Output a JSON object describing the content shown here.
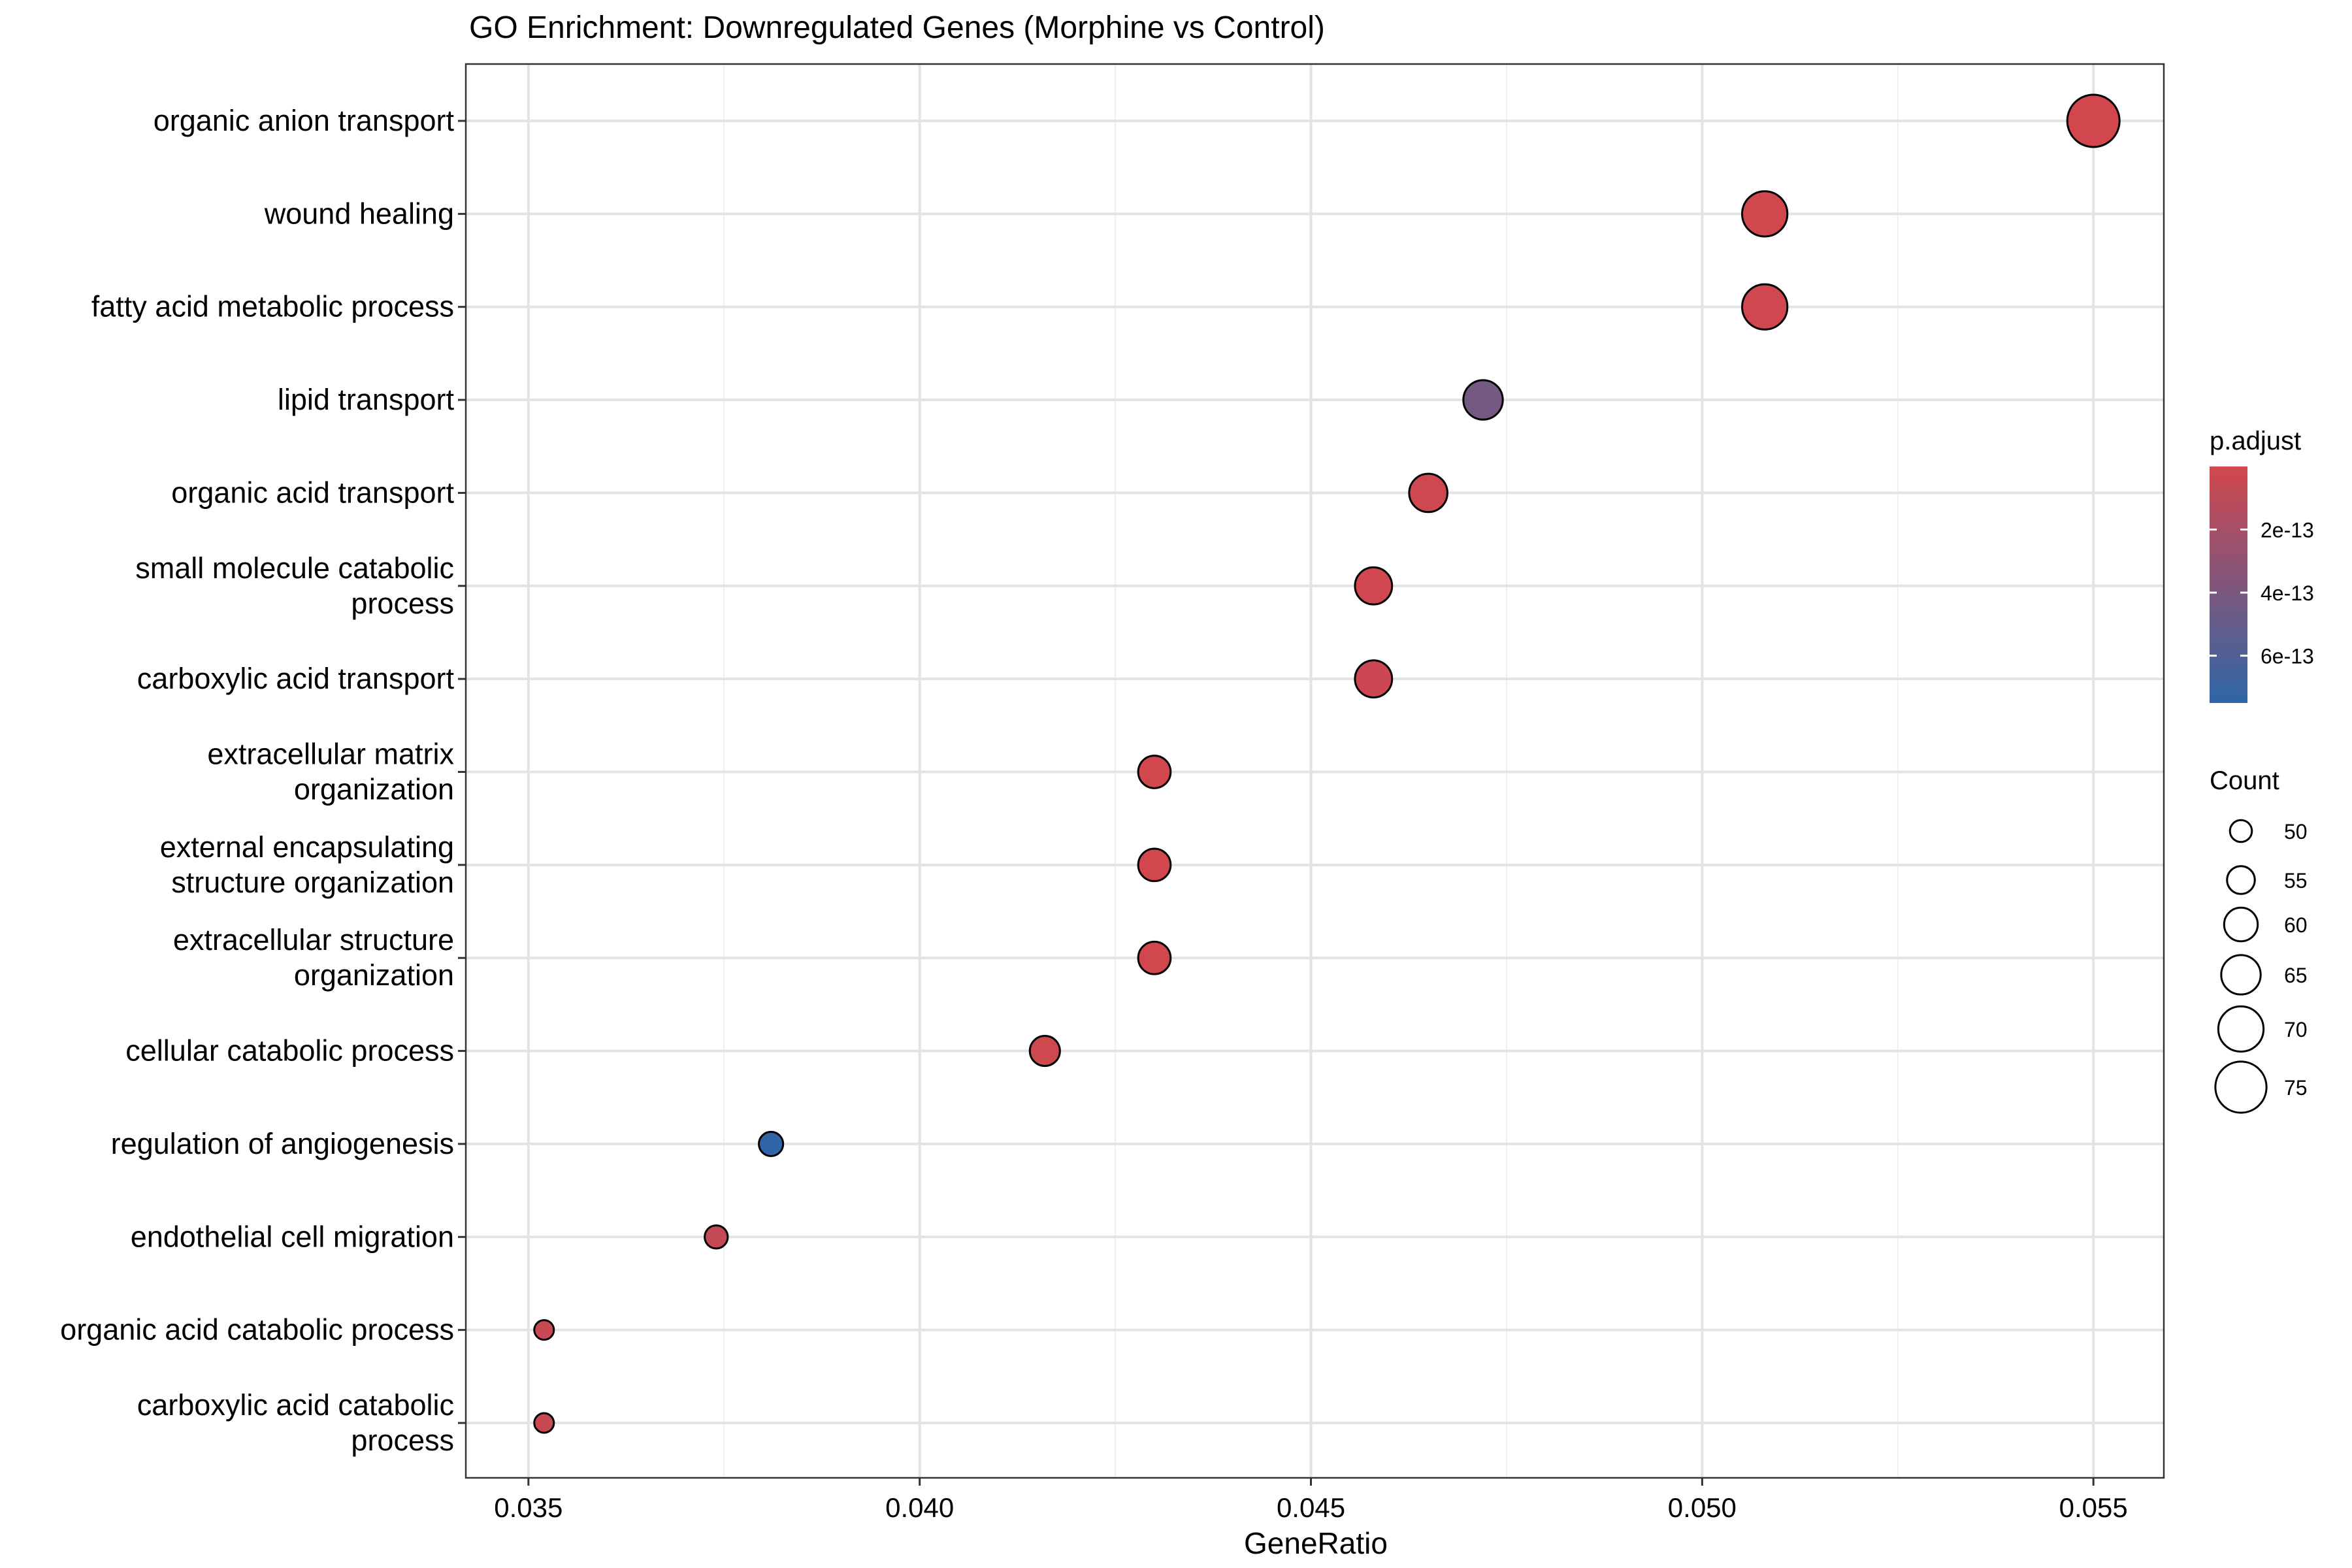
{
  "chart_data": {
    "type": "scatter",
    "title": "GO Enrichment: Downregulated Genes (Morphine vs Control)",
    "xlabel": "GeneRatio",
    "ylabel": "",
    "xlim": [
      0.0342,
      0.0559
    ],
    "x_ticks": [
      0.035,
      0.04,
      0.045,
      0.05,
      0.055
    ],
    "x_tick_labels": [
      "0.035",
      "0.040",
      "0.045",
      "0.050",
      "0.055"
    ],
    "grid": true,
    "legend_position": "right",
    "categories": [
      {
        "lines": [
          "organic anion transport"
        ]
      },
      {
        "lines": [
          "wound healing"
        ]
      },
      {
        "lines": [
          "fatty acid metabolic process"
        ]
      },
      {
        "lines": [
          "lipid transport"
        ]
      },
      {
        "lines": [
          "organic acid transport"
        ]
      },
      {
        "lines": [
          "small molecule catabolic",
          "process"
        ]
      },
      {
        "lines": [
          "carboxylic acid transport"
        ]
      },
      {
        "lines": [
          "extracellular matrix",
          "organization"
        ]
      },
      {
        "lines": [
          "external encapsulating",
          "structure organization"
        ]
      },
      {
        "lines": [
          "extracellular structure",
          "organization"
        ]
      },
      {
        "lines": [
          "cellular catabolic process"
        ]
      },
      {
        "lines": [
          "regulation of angiogenesis"
        ]
      },
      {
        "lines": [
          "endothelial cell migration"
        ]
      },
      {
        "lines": [
          "organic acid catabolic process"
        ]
      },
      {
        "lines": [
          "carboxylic acid catabolic",
          "process"
        ]
      }
    ],
    "points": [
      {
        "gene_ratio": 0.055,
        "count": 76,
        "p_adjust": 2e-15
      },
      {
        "gene_ratio": 0.0508,
        "count": 70,
        "p_adjust": 3e-15
      },
      {
        "gene_ratio": 0.0508,
        "count": 70,
        "p_adjust": 1e-14
      },
      {
        "gene_ratio": 0.0472,
        "count": 65,
        "p_adjust": 4.3e-13
      },
      {
        "gene_ratio": 0.0465,
        "count": 64,
        "p_adjust": 2e-14
      },
      {
        "gene_ratio": 0.0458,
        "count": 63,
        "p_adjust": 5e-15
      },
      {
        "gene_ratio": 0.0458,
        "count": 63,
        "p_adjust": 3e-14
      },
      {
        "gene_ratio": 0.043,
        "count": 59,
        "p_adjust": 1e-15
      },
      {
        "gene_ratio": 0.043,
        "count": 59,
        "p_adjust": 1e-15
      },
      {
        "gene_ratio": 0.043,
        "count": 59,
        "p_adjust": 1e-15
      },
      {
        "gene_ratio": 0.0416,
        "count": 57,
        "p_adjust": 2e-14
      },
      {
        "gene_ratio": 0.0381,
        "count": 52,
        "p_adjust": 7.4e-13
      },
      {
        "gene_ratio": 0.0374,
        "count": 51,
        "p_adjust": 6e-14
      },
      {
        "gene_ratio": 0.0352,
        "count": 48,
        "p_adjust": 4e-14
      },
      {
        "gene_ratio": 0.0352,
        "count": 48,
        "p_adjust": 4e-14
      }
    ],
    "color_legend": {
      "title": "p.adjust",
      "range": [
        0,
        7.5e-13
      ],
      "low_color": "#d2474e",
      "high_color": "#2e66a8",
      "ticks": [
        2e-13,
        4e-13,
        6e-13
      ],
      "tick_labels": [
        "2e-13",
        "4e-13",
        "6e-13"
      ]
    },
    "size_legend": {
      "title": "Count",
      "values": [
        50,
        55,
        60,
        65,
        70,
        75
      ],
      "labels": [
        "50",
        "55",
        "60",
        "65",
        "70",
        "75"
      ]
    }
  }
}
